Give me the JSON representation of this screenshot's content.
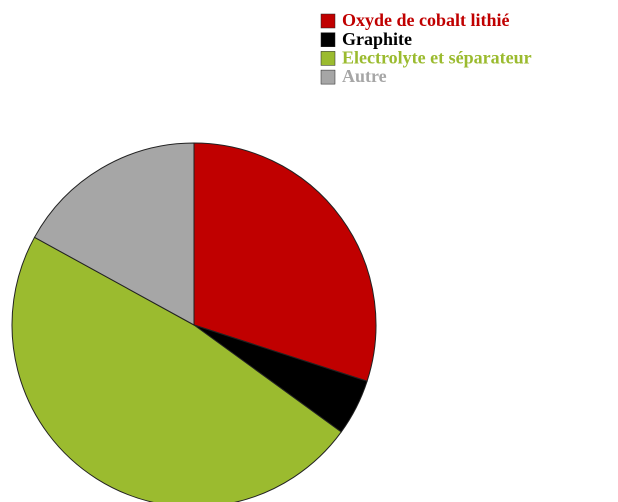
{
  "chart_data": {
    "type": "pie",
    "categories": [
      "Oxyde de cobalt lithié",
      "Graphite",
      "Electrolyte et séparateur",
      "Autre"
    ],
    "values": [
      30,
      5,
      48,
      17
    ],
    "colors": [
      "#c00000",
      "#000000",
      "#9bbb2f",
      "#a6a6a6"
    ],
    "legend": "top-right"
  }
}
